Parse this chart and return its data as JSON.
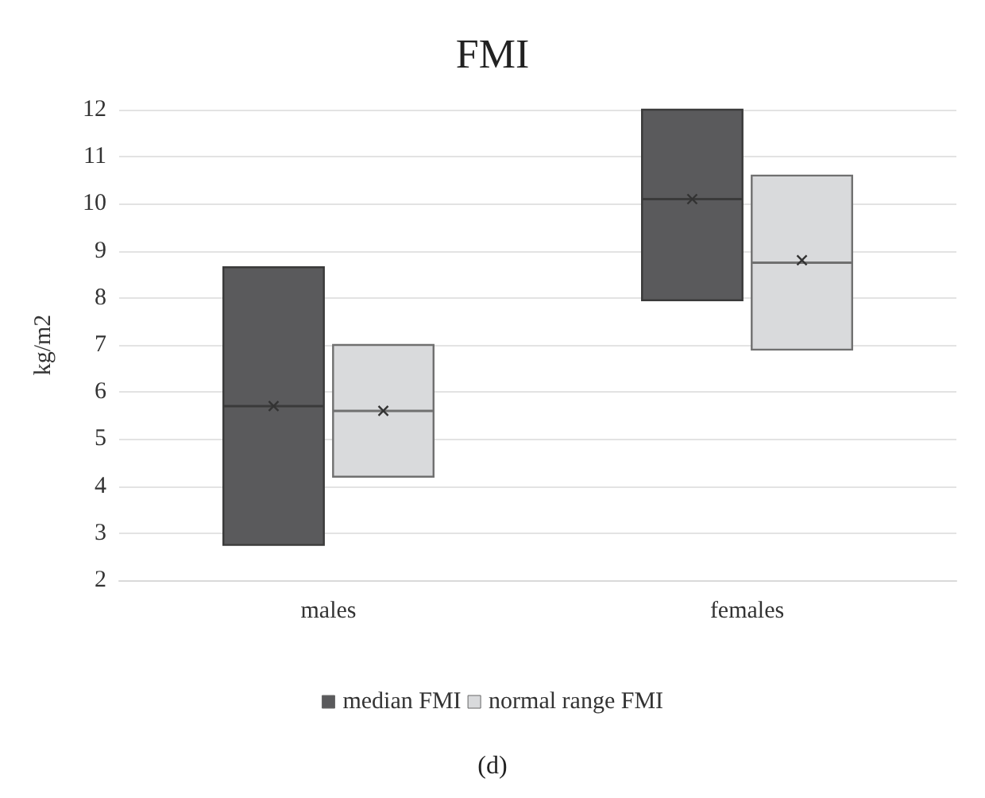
{
  "chart_data": {
    "type": "box",
    "title": "FMI",
    "ylabel": "kg/m2",
    "categories": [
      "males",
      "females"
    ],
    "series": [
      {
        "name": "median FMI",
        "color": "#5a5a5c",
        "boxes": [
          {
            "q1": 2.75,
            "median": 5.7,
            "q3": 8.65,
            "mean": 5.7
          },
          {
            "q1": 7.95,
            "median": 10.1,
            "q3": 12,
            "mean": 10.1
          }
        ]
      },
      {
        "name": "normal range FMI",
        "color": "#d9dadc",
        "boxes": [
          {
            "q1": 4.2,
            "median": 5.6,
            "q3": 7,
            "mean": 5.6
          },
          {
            "q1": 6.9,
            "median": 8.75,
            "q3": 10.6,
            "mean": 8.8
          }
        ]
      }
    ],
    "ylim": [
      2,
      12
    ],
    "yticks": [
      2,
      3,
      4,
      5,
      6,
      7,
      8,
      9,
      10,
      11,
      12
    ],
    "grid": "y",
    "legend": "bottom",
    "annotations": [
      "(d)"
    ]
  }
}
